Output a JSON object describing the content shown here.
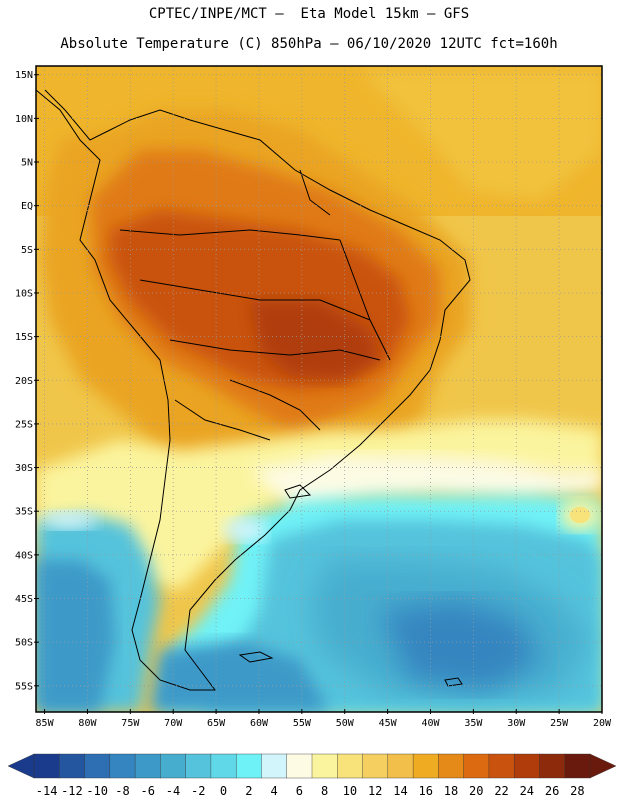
{
  "header": {
    "line1": "CPTEC/INPE/MCT –  Eta Model 15km – GFS",
    "line2": "Absolute Temperature (C) 850hPa – 06/10/2020 12UTC fct=160h"
  },
  "map": {
    "lat_ticks": [
      "15N",
      "10N",
      "5N",
      "EQ",
      "5S",
      "10S",
      "15S",
      "20S",
      "25S",
      "30S",
      "35S",
      "40S",
      "45S",
      "50S",
      "55S"
    ],
    "lon_ticks": [
      "85W",
      "80W",
      "75W",
      "70W",
      "65W",
      "60W",
      "55W",
      "50W",
      "45W",
      "40W",
      "35W",
      "30W",
      "25W",
      "20W"
    ],
    "lon_range": [
      -86,
      -20
    ],
    "lat_range": [
      -58,
      16
    ]
  },
  "colorbar": {
    "labels": [
      "-14",
      "-12",
      "-10",
      "-8",
      "-6",
      "-4",
      "-2",
      "0",
      "2",
      "4",
      "6",
      "8",
      "10",
      "12",
      "14",
      "16",
      "18",
      "20",
      "22",
      "24",
      "26",
      "28"
    ],
    "colors": [
      "#1a3a8c",
      "#2456a0",
      "#2e6fb4",
      "#3585c0",
      "#3d9ac8",
      "#47adcf",
      "#55c3dc",
      "#61d8e8",
      "#6ff2f7",
      "#d2f4fb",
      "#fdfbe4",
      "#fbf49e",
      "#f8e27a",
      "#f5d061",
      "#f2bf4a",
      "#efac22",
      "#e58a18",
      "#dc6a10",
      "#c9520e",
      "#b03c0c",
      "#8e2a0c",
      "#6a1a0c"
    ]
  }
}
